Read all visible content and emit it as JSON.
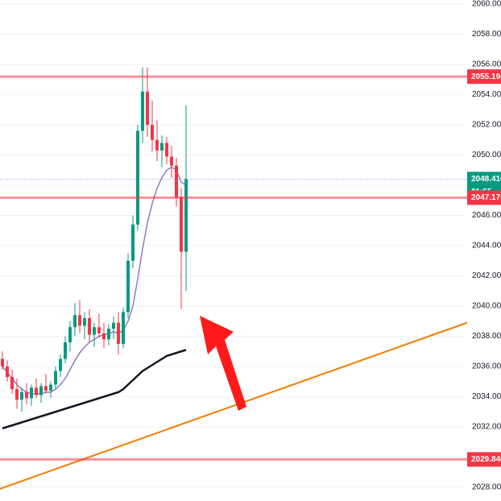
{
  "chart_data": {
    "type": "candlestick",
    "ylim": [
      2028,
      2060
    ],
    "yticks": [
      {
        "value": 2028,
        "label": "2028.000"
      },
      {
        "value": 2030,
        "label": "2030.000"
      },
      {
        "value": 2032,
        "label": "2032.000"
      },
      {
        "value": 2034,
        "label": "2034.000"
      },
      {
        "value": 2036,
        "label": "2036.000"
      },
      {
        "value": 2038,
        "label": "2038.000"
      },
      {
        "value": 2040,
        "label": "2040.000"
      },
      {
        "value": 2042,
        "label": "2042.000"
      },
      {
        "value": 2044,
        "label": "2044.000"
      },
      {
        "value": 2046,
        "label": "2046.000"
      },
      {
        "value": 2048,
        "label": "2048.000"
      },
      {
        "value": 2050,
        "label": "2050.000"
      },
      {
        "value": 2052,
        "label": "2052.000"
      },
      {
        "value": 2054,
        "label": "2054.000"
      },
      {
        "value": 2056,
        "label": "2056.000"
      },
      {
        "value": 2058,
        "label": "2058.000"
      },
      {
        "value": 2060,
        "label": "2060.000"
      }
    ],
    "grid": true,
    "up_color": "#089981",
    "down_color": "#f23645",
    "open": [
      2036.5,
      2036.0,
      2035.3,
      2034.5,
      2033.8,
      2034.3,
      2033.9,
      2034.6,
      2034.1,
      2034.7,
      2034.4,
      2034.8,
      2035.7,
      2036.5,
      2037.6,
      2038.6,
      2039.4,
      2038.7,
      2039.2,
      2038.1,
      2038.6,
      2038.2,
      2037.8,
      2038.5,
      2038.9,
      2037.5,
      2039.6,
      2043.0,
      2045.4,
      2051.6,
      2054.2,
      2052.0,
      2051.0,
      2050.3,
      2050.8,
      2049.9,
      2049.3,
      2047.2,
      2043.6
    ],
    "high": [
      2037.0,
      2036.4,
      2035.8,
      2035.2,
      2034.6,
      2034.9,
      2034.8,
      2035.2,
      2034.9,
      2035.5,
      2035.0,
      2036.0,
      2036.8,
      2038.0,
      2039.0,
      2040.2,
      2040.4,
      2039.6,
      2039.8,
      2038.9,
      2039.5,
      2038.9,
      2038.8,
      2039.3,
      2039.6,
      2039.9,
      2043.5,
      2046.0,
      2052.0,
      2055.8,
      2055.8,
      2053.6,
      2052.3,
      2051.3,
      2051.2,
      2050.6,
      2049.8,
      2047.8,
      2053.3
    ],
    "low": [
      2035.8,
      2035.0,
      2034.2,
      2033.2,
      2033.0,
      2033.5,
      2033.4,
      2033.9,
      2033.6,
      2034.2,
      2033.9,
      2034.5,
      2035.3,
      2036.2,
      2037.0,
      2038.0,
      2038.2,
      2037.8,
      2037.6,
      2037.3,
      2037.9,
      2037.2,
      2037.4,
      2037.8,
      2036.8,
      2037.2,
      2039.2,
      2042.5,
      2045.0,
      2050.8,
      2051.2,
      2050.2,
      2049.6,
      2049.2,
      2049.4,
      2048.5,
      2046.6,
      2039.8,
      2041.0
    ],
    "close": [
      2036.0,
      2035.3,
      2034.5,
      2033.8,
      2034.3,
      2033.9,
      2034.6,
      2034.1,
      2034.7,
      2034.4,
      2034.8,
      2035.7,
      2036.5,
      2037.6,
      2038.6,
      2039.4,
      2038.7,
      2039.2,
      2038.1,
      2038.6,
      2038.2,
      2037.8,
      2038.5,
      2038.9,
      2037.5,
      2039.6,
      2043.0,
      2045.4,
      2051.6,
      2054.2,
      2052.0,
      2051.0,
      2050.3,
      2050.8,
      2049.9,
      2049.3,
      2047.2,
      2043.6,
      2048.41
    ],
    "series": [
      {
        "color": "#131722",
        "values": [
          2031.9,
          2032.0,
          2032.1,
          2032.2,
          2032.3,
          2032.4,
          2032.5,
          2032.6,
          2032.7,
          2032.8,
          2032.9,
          2033.0,
          2033.1,
          2033.2,
          2033.3,
          2033.4,
          2033.5,
          2033.6,
          2033.7,
          2033.8,
          2033.9,
          2034.0,
          2034.1,
          2034.2,
          2034.3,
          2034.5,
          2034.8,
          2035.1,
          2035.4,
          2035.7,
          2035.9,
          2036.1,
          2036.3,
          2036.5,
          2036.7,
          2036.8,
          2036.9,
          2037.0,
          2037.1
        ]
      },
      {
        "color": "#8e7cc3",
        "values": [
          2036.0,
          2035.6,
          2035.2,
          2034.8,
          2034.5,
          2034.3,
          2034.2,
          2034.2,
          2034.2,
          2034.3,
          2034.3,
          2034.5,
          2034.8,
          2035.2,
          2035.8,
          2036.4,
          2036.9,
          2037.3,
          2037.6,
          2037.8,
          2038.0,
          2038.1,
          2038.2,
          2038.3,
          2038.2,
          2038.4,
          2039.0,
          2040.0,
          2041.8,
          2043.8,
          2045.5,
          2046.8,
          2047.8,
          2048.5,
          2049.0,
          2049.2,
          2049.0,
          2048.2,
          2048.0
        ]
      }
    ],
    "trendline": {
      "color": "#f57c00",
      "values": [
        2027.9,
        2038.9
      ]
    },
    "price_lines": [
      {
        "value": 2055.194,
        "color": "#f23645"
      },
      {
        "value": 2048.41,
        "label": "2048.410",
        "color": "#089981",
        "countdown": "01:55"
      },
      {
        "value": 2047.179,
        "color": "#f23645"
      },
      {
        "value": 2029.846,
        "color": "#f23645"
      }
    ]
  }
}
